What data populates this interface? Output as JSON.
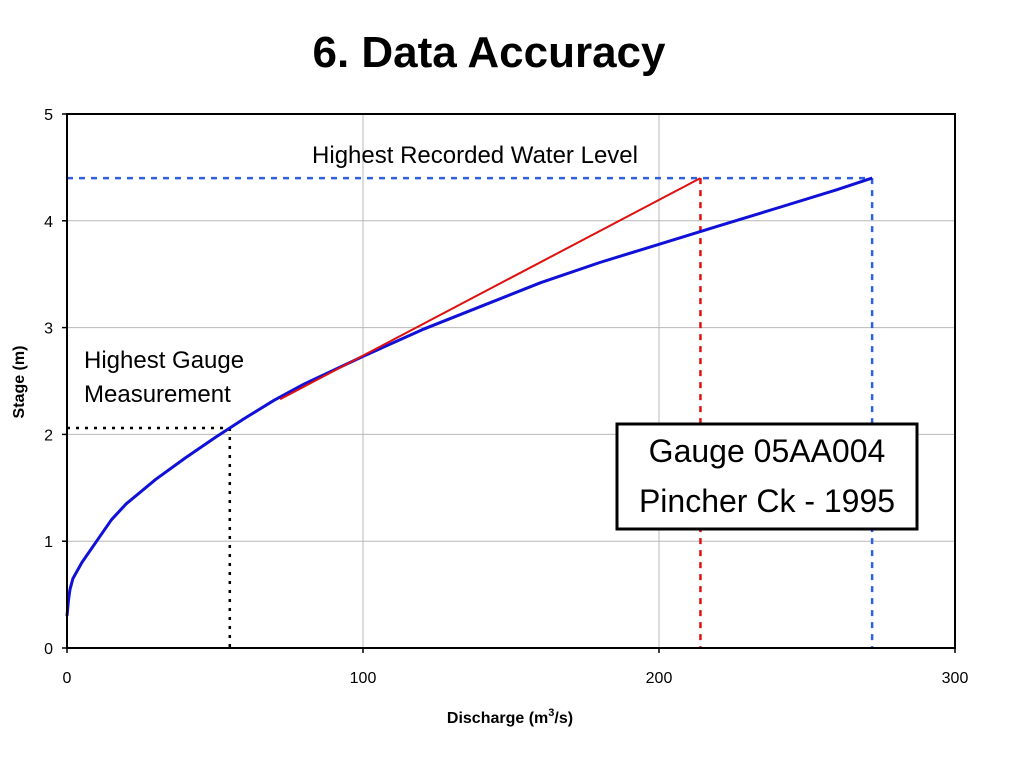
{
  "slide": {
    "title": "6. Data Accuracy"
  },
  "chart_data": {
    "type": "line",
    "xlabel_main": "Discharge (m",
    "xlabel_sup": "3",
    "xlabel_end": "/s)",
    "ylabel": "Stage (m)",
    "xlim": [
      0,
      300
    ],
    "ylim": [
      0,
      5
    ],
    "xticks": [
      0,
      100,
      200,
      300
    ],
    "xtick_labels": [
      "0",
      "100",
      "200",
      "300"
    ],
    "yticks": [
      0,
      1,
      2,
      3,
      4,
      5
    ],
    "ytick_labels": [
      "0",
      "1",
      "2",
      "3",
      "4",
      "5"
    ],
    "grid": true,
    "series": [
      {
        "color": "#1010d8",
        "points": [
          [
            0,
            0.3
          ],
          [
            0.5,
            0.45
          ],
          [
            1,
            0.55
          ],
          [
            2,
            0.65
          ],
          [
            5,
            0.8
          ],
          [
            10,
            1.0
          ],
          [
            15,
            1.2
          ],
          [
            20,
            1.35
          ],
          [
            30,
            1.58
          ],
          [
            40,
            1.78
          ],
          [
            50,
            1.97
          ],
          [
            55,
            2.06
          ],
          [
            60,
            2.15
          ],
          [
            70,
            2.32
          ],
          [
            80,
            2.47
          ],
          [
            100,
            2.73
          ],
          [
            120,
            2.98
          ],
          [
            140,
            3.2
          ],
          [
            160,
            3.42
          ],
          [
            180,
            3.61
          ],
          [
            200,
            3.78
          ],
          [
            220,
            3.95
          ],
          [
            240,
            4.12
          ],
          [
            260,
            4.29
          ],
          [
            272,
            4.4
          ]
        ]
      },
      {
        "color": "#e01010",
        "points": [
          [
            72,
            2.33
          ],
          [
            214,
            4.4
          ]
        ]
      }
    ],
    "reference_lines": [
      {
        "color": "#3060e0",
        "style": "dashed",
        "points": [
          [
            0,
            4.4
          ],
          [
            272,
            4.4
          ]
        ]
      },
      {
        "color": "#3060e0",
        "style": "dashed",
        "points": [
          [
            272,
            4.4
          ],
          [
            272,
            0
          ]
        ]
      },
      {
        "color": "#e01010",
        "style": "dashed",
        "points": [
          [
            214,
            4.4
          ],
          [
            214,
            0
          ]
        ]
      },
      {
        "color": "#000000",
        "style": "dotted",
        "points": [
          [
            0,
            2.06
          ],
          [
            55,
            2.06
          ]
        ]
      },
      {
        "color": "#000000",
        "style": "dotted",
        "points": [
          [
            55,
            2.06
          ],
          [
            55,
            0
          ]
        ]
      }
    ],
    "annotations": [
      {
        "text": "Highest Recorded Water Level"
      },
      {
        "text": "Highest Gauge"
      },
      {
        "text": "Measurement"
      }
    ],
    "info_box": {
      "line1": "Gauge 05AA004",
      "line2": "Pincher Ck - 1995"
    }
  }
}
